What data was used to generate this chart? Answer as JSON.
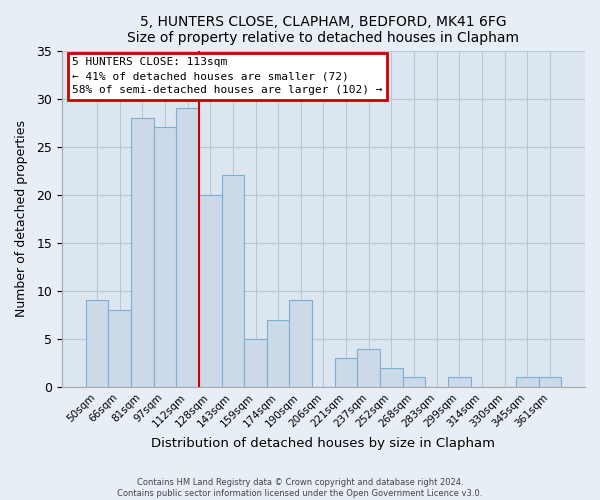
{
  "title": "5, HUNTERS CLOSE, CLAPHAM, BEDFORD, MK41 6FG",
  "subtitle": "Size of property relative to detached houses in Clapham",
  "xlabel": "Distribution of detached houses by size in Clapham",
  "ylabel": "Number of detached properties",
  "bin_labels": [
    "50sqm",
    "66sqm",
    "81sqm",
    "97sqm",
    "112sqm",
    "128sqm",
    "143sqm",
    "159sqm",
    "174sqm",
    "190sqm",
    "206sqm",
    "221sqm",
    "237sqm",
    "252sqm",
    "268sqm",
    "283sqm",
    "299sqm",
    "314sqm",
    "330sqm",
    "345sqm",
    "361sqm"
  ],
  "values": [
    9,
    8,
    28,
    27,
    29,
    20,
    22,
    5,
    7,
    9,
    0,
    3,
    4,
    2,
    1,
    0,
    1,
    0,
    0,
    1,
    1
  ],
  "bar_color": "#ccd9e8",
  "bar_edge_color": "#7bafd4",
  "highlight_line_color": "#cc0000",
  "annotation_line1": "5 HUNTERS CLOSE: 113sqm",
  "annotation_line2": "← 41% of detached houses are smaller (72)",
  "annotation_line3": "58% of semi-detached houses are larger (102) →",
  "annotation_box_color": "#cc0000",
  "ylim": [
    0,
    35
  ],
  "yticks": [
    0,
    5,
    10,
    15,
    20,
    25,
    30,
    35
  ],
  "footer_line1": "Contains HM Land Registry data © Crown copyright and database right 2024.",
  "footer_line2": "Contains public sector information licensed under the Open Government Licence v3.0.",
  "fig_bg_color": "#e8eef5",
  "plot_bg_color": "#dce6f0",
  "grid_color": "#b8c8d8"
}
